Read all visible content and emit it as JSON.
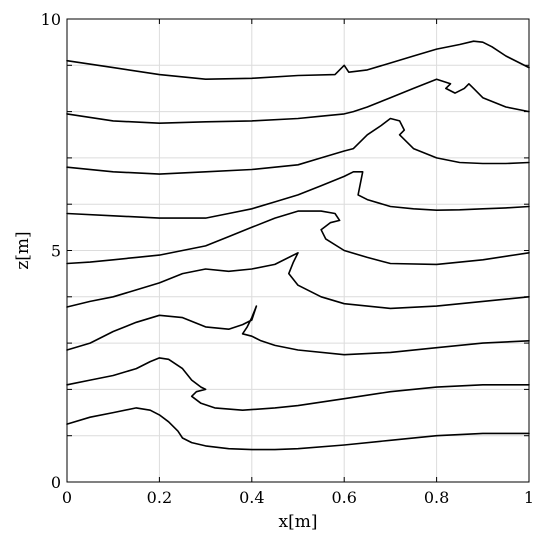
{
  "chart_data": {
    "type": "line",
    "xlabel": "x[m]",
    "ylabel": "z[m]",
    "xlim": [
      0,
      1
    ],
    "ylim": [
      0,
      10
    ],
    "x_ticks": [
      0,
      0.2,
      0.4,
      0.6,
      0.8,
      1
    ],
    "x_tick_labels": [
      "0",
      "0.2",
      "0.4",
      "0.6",
      "0.8",
      "1"
    ],
    "y_ticks": [
      0,
      5,
      10
    ],
    "y_tick_labels": [
      "0",
      "5",
      "10"
    ],
    "y_minor_gridlines": [
      1,
      2,
      3,
      4,
      6,
      7,
      8,
      9
    ],
    "grid": true,
    "series": [
      {
        "x": [
          0,
          0.05,
          0.1,
          0.15,
          0.18,
          0.2,
          0.22,
          0.24,
          0.25,
          0.27,
          0.3,
          0.35,
          0.4,
          0.45,
          0.5,
          0.6,
          0.7,
          0.8,
          0.9,
          1.0
        ],
        "y": [
          1.25,
          1.4,
          1.5,
          1.6,
          1.55,
          1.45,
          1.3,
          1.1,
          0.95,
          0.85,
          0.78,
          0.72,
          0.7,
          0.7,
          0.72,
          0.8,
          0.9,
          1.0,
          1.05,
          1.05
        ]
      },
      {
        "x": [
          0,
          0.05,
          0.1,
          0.15,
          0.18,
          0.2,
          0.22,
          0.25,
          0.27,
          0.29,
          0.3,
          0.28,
          0.27,
          0.29,
          0.32,
          0.38,
          0.45,
          0.5,
          0.6,
          0.7,
          0.8,
          0.9,
          1.0
        ],
        "y": [
          2.1,
          2.2,
          2.3,
          2.45,
          2.6,
          2.68,
          2.65,
          2.45,
          2.2,
          2.05,
          2.0,
          1.95,
          1.85,
          1.7,
          1.6,
          1.55,
          1.6,
          1.65,
          1.8,
          1.95,
          2.05,
          2.1,
          2.1
        ]
      },
      {
        "x": [
          0,
          0.05,
          0.1,
          0.15,
          0.2,
          0.25,
          0.3,
          0.35,
          0.38,
          0.4,
          0.41,
          0.4,
          0.39,
          0.38,
          0.4,
          0.42,
          0.45,
          0.5,
          0.6,
          0.7,
          0.8,
          0.9,
          1.0
        ],
        "y": [
          2.85,
          3.0,
          3.25,
          3.45,
          3.6,
          3.55,
          3.35,
          3.3,
          3.4,
          3.5,
          3.8,
          3.55,
          3.35,
          3.2,
          3.15,
          3.05,
          2.95,
          2.85,
          2.75,
          2.8,
          2.9,
          3.0,
          3.05
        ]
      },
      {
        "x": [
          0,
          0.05,
          0.1,
          0.15,
          0.2,
          0.25,
          0.3,
          0.35,
          0.4,
          0.45,
          0.5,
          0.49,
          0.48,
          0.5,
          0.55,
          0.6,
          0.7,
          0.8,
          0.9,
          1.0
        ],
        "y": [
          3.78,
          3.9,
          4.0,
          4.15,
          4.3,
          4.5,
          4.6,
          4.55,
          4.6,
          4.7,
          4.95,
          4.75,
          4.5,
          4.25,
          4.0,
          3.85,
          3.75,
          3.8,
          3.9,
          4.0
        ]
      },
      {
        "x": [
          0,
          0.05,
          0.1,
          0.15,
          0.2,
          0.25,
          0.3,
          0.35,
          0.4,
          0.45,
          0.5,
          0.55,
          0.58,
          0.59,
          0.57,
          0.55,
          0.56,
          0.6,
          0.65,
          0.7,
          0.8,
          0.9,
          1.0
        ],
        "y": [
          4.72,
          4.75,
          4.8,
          4.85,
          4.9,
          5.0,
          5.1,
          5.3,
          5.5,
          5.7,
          5.85,
          5.85,
          5.8,
          5.65,
          5.6,
          5.45,
          5.25,
          5.0,
          4.85,
          4.72,
          4.7,
          4.8,
          4.95
        ]
      },
      {
        "x": [
          0,
          0.1,
          0.2,
          0.3,
          0.35,
          0.4,
          0.45,
          0.5,
          0.55,
          0.6,
          0.62,
          0.64,
          0.63,
          0.65,
          0.7,
          0.75,
          0.8,
          0.85,
          0.9,
          0.95,
          1.0
        ],
        "y": [
          5.8,
          5.75,
          5.7,
          5.7,
          5.8,
          5.9,
          6.05,
          6.2,
          6.4,
          6.6,
          6.7,
          6.7,
          6.2,
          6.1,
          5.95,
          5.9,
          5.87,
          5.88,
          5.9,
          5.92,
          5.95
        ]
      },
      {
        "x": [
          0,
          0.1,
          0.2,
          0.3,
          0.4,
          0.5,
          0.55,
          0.6,
          0.62,
          0.65,
          0.68,
          0.7,
          0.72,
          0.73,
          0.72,
          0.75,
          0.8,
          0.85,
          0.9,
          0.95,
          1.0
        ],
        "y": [
          6.8,
          6.7,
          6.65,
          6.7,
          6.75,
          6.85,
          7.0,
          7.15,
          7.2,
          7.5,
          7.7,
          7.85,
          7.8,
          7.6,
          7.5,
          7.2,
          7.0,
          6.9,
          6.88,
          6.88,
          6.9
        ]
      },
      {
        "x": [
          0,
          0.1,
          0.2,
          0.3,
          0.4,
          0.5,
          0.55,
          0.6,
          0.62,
          0.65,
          0.7,
          0.75,
          0.8,
          0.83,
          0.82,
          0.84,
          0.86,
          0.87,
          0.88,
          0.9,
          0.95,
          1.0
        ],
        "y": [
          7.95,
          7.8,
          7.75,
          7.78,
          7.8,
          7.85,
          7.9,
          7.95,
          8.0,
          8.1,
          8.3,
          8.5,
          8.7,
          8.6,
          8.5,
          8.4,
          8.5,
          8.6,
          8.5,
          8.3,
          8.1,
          8.0
        ]
      },
      {
        "x": [
          0,
          0.1,
          0.2,
          0.3,
          0.4,
          0.5,
          0.58,
          0.6,
          0.61,
          0.65,
          0.7,
          0.75,
          0.8,
          0.85,
          0.88,
          0.9,
          0.92,
          0.95,
          1.0
        ],
        "y": [
          9.1,
          8.95,
          8.8,
          8.7,
          8.72,
          8.78,
          8.8,
          9.0,
          8.85,
          8.9,
          9.05,
          9.2,
          9.35,
          9.45,
          9.52,
          9.5,
          9.4,
          9.2,
          8.95
        ]
      }
    ]
  }
}
